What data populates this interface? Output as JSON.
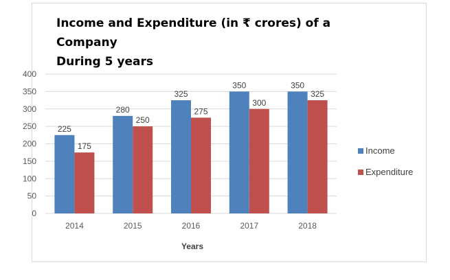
{
  "chart_data": {
    "type": "bar",
    "title_line1": "Income and Expenditure (in ₹ crores) of a Company",
    "title_line2": "During 5 years",
    "xlabel": "Years",
    "ylabel": "",
    "categories": [
      "2014",
      "2015",
      "2016",
      "2017",
      "2018"
    ],
    "series": [
      {
        "name": "Income",
        "color": "#4f81bd",
        "values": [
          225,
          280,
          325,
          350,
          350
        ]
      },
      {
        "name": "Expenditure",
        "color": "#c0504d",
        "values": [
          175,
          250,
          275,
          300,
          325
        ]
      }
    ],
    "ylim": [
      0,
      400
    ],
    "yticks": [
      0,
      50,
      100,
      150,
      200,
      250,
      300,
      350,
      400
    ],
    "grid": true,
    "legend_position": "right"
  }
}
